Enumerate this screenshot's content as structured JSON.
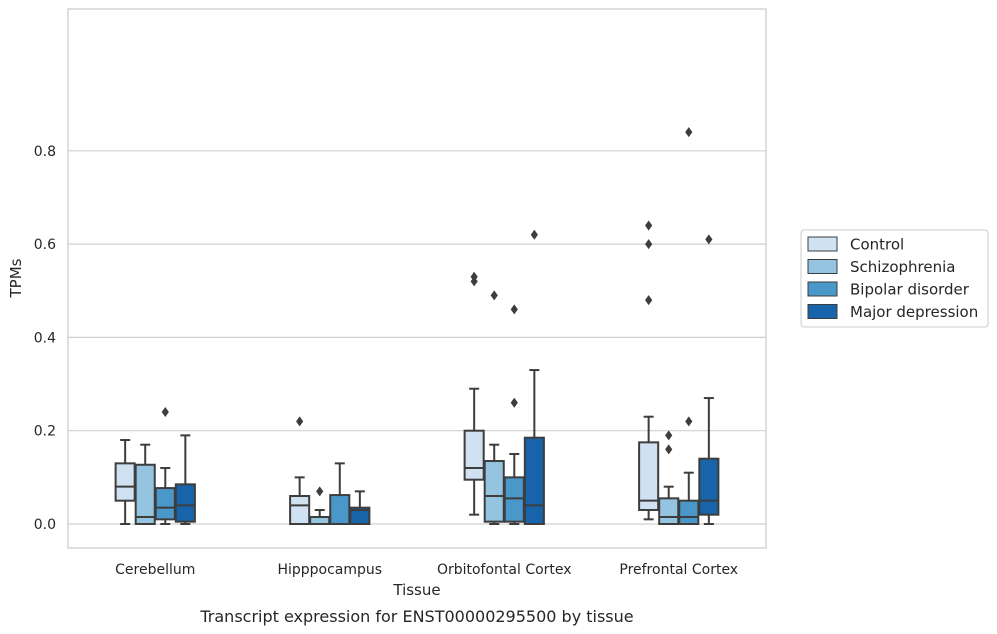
{
  "caption": "Transcript expression for ENST00000295500 by tissue",
  "chart_data": {
    "type": "box",
    "title": "",
    "xlabel": "Tissue",
    "ylabel": "TPMs",
    "ylim": [
      -0.04,
      0.885
    ],
    "yticks": [
      0.0,
      0.2,
      0.4,
      0.6,
      0.8
    ],
    "ytick_labels": [
      "0.0",
      "0.2",
      "0.4",
      "0.6",
      "0.8"
    ],
    "grid": "horizontal",
    "legend_placement": "right",
    "categories": [
      "Cerebellum",
      "Hipppocampus",
      "Orbitofontal Cortex",
      "Prefrontal Cortex"
    ],
    "series": [
      {
        "name": "Control",
        "color": "#d0e1f2",
        "boxes": [
          {
            "whislo": 0.0,
            "q1": 0.05,
            "med": 0.08,
            "q3": 0.13,
            "whishi": 0.18,
            "fliers": []
          },
          {
            "whislo": 0.0,
            "q1": 0.0,
            "med": 0.04,
            "q3": 0.06,
            "whishi": 0.1,
            "fliers": [
              0.22
            ]
          },
          {
            "whislo": 0.02,
            "q1": 0.095,
            "med": 0.12,
            "q3": 0.2,
            "whishi": 0.29,
            "fliers": [
              0.52,
              0.53
            ]
          },
          {
            "whislo": 0.01,
            "q1": 0.03,
            "med": 0.05,
            "q3": 0.175,
            "whishi": 0.23,
            "fliers": [
              0.48,
              0.6,
              0.64
            ]
          }
        ]
      },
      {
        "name": "Schizophrenia",
        "color": "#94c4df",
        "boxes": [
          {
            "whislo": 0.0,
            "q1": 0.0,
            "med": 0.015,
            "q3": 0.127,
            "whishi": 0.17,
            "fliers": []
          },
          {
            "whislo": 0.0,
            "q1": 0.0,
            "med": 0.015,
            "q3": 0.015,
            "whishi": 0.03,
            "fliers": [
              0.07
            ]
          },
          {
            "whislo": 0.0,
            "q1": 0.005,
            "med": 0.06,
            "q3": 0.135,
            "whishi": 0.17,
            "fliers": [
              0.49
            ]
          },
          {
            "whislo": 0.0,
            "q1": 0.0,
            "med": 0.015,
            "q3": 0.055,
            "whishi": 0.08,
            "fliers": [
              0.16,
              0.19
            ]
          }
        ]
      },
      {
        "name": "Bipolar disorder",
        "color": "#4a98c9",
        "boxes": [
          {
            "whislo": 0.0,
            "q1": 0.01,
            "med": 0.035,
            "q3": 0.077,
            "whishi": 0.12,
            "fliers": [
              0.24
            ]
          },
          {
            "whislo": 0.0,
            "q1": 0.0,
            "med": 0.0,
            "q3": 0.062,
            "whishi": 0.13,
            "fliers": []
          },
          {
            "whislo": 0.0,
            "q1": 0.005,
            "med": 0.055,
            "q3": 0.1,
            "whishi": 0.15,
            "fliers": [
              0.26,
              0.46
            ]
          },
          {
            "whislo": 0.0,
            "q1": 0.0,
            "med": 0.015,
            "q3": 0.05,
            "whishi": 0.11,
            "fliers": [
              0.22,
              0.84
            ]
          }
        ]
      },
      {
        "name": "Major depression",
        "color": "#1764ab",
        "boxes": [
          {
            "whislo": 0.0,
            "q1": 0.005,
            "med": 0.04,
            "q3": 0.085,
            "whishi": 0.19,
            "fliers": []
          },
          {
            "whislo": 0.0,
            "q1": 0.0,
            "med": 0.03,
            "q3": 0.035,
            "whishi": 0.07,
            "fliers": []
          },
          {
            "whislo": 0.0,
            "q1": 0.0,
            "med": 0.04,
            "q3": 0.185,
            "whishi": 0.33,
            "fliers": [
              0.62
            ]
          },
          {
            "whislo": 0.0,
            "q1": 0.02,
            "med": 0.05,
            "q3": 0.14,
            "whishi": 0.27,
            "fliers": [
              0.61
            ]
          }
        ]
      }
    ]
  }
}
